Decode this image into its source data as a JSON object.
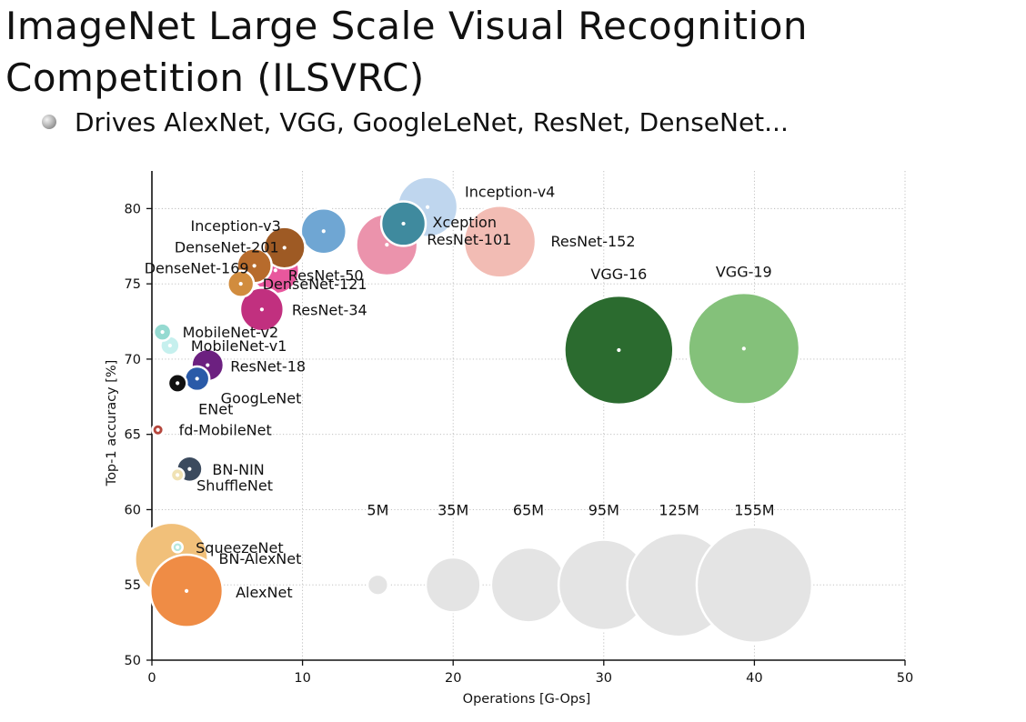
{
  "slide": {
    "title_line1": "ImageNet Large Scale Visual Recognition",
    "title_line2": "Competition (ILSVRC)",
    "bullet": "Drives AlexNet, VGG, GoogleLeNet, ResNet, DenseNet..."
  },
  "chart_data": {
    "type": "scatter",
    "xlabel": "Operations [G-Ops]",
    "ylabel": "Top-1 accuracy [%]",
    "xlim": [
      0,
      50
    ],
    "ylim": [
      50,
      82.5
    ],
    "xticks": [
      "0",
      "10",
      "20",
      "30",
      "40",
      "50"
    ],
    "yticks": [
      "50",
      "55",
      "60",
      "65",
      "70",
      "75",
      "80"
    ],
    "grid": true,
    "points": [
      {
        "name": "AlexNet",
        "x": 2.3,
        "y": 54.6,
        "params_m": 61,
        "color": "#ef8c45"
      },
      {
        "name": "BN-AlexNet",
        "x": 1.3,
        "y": 56.7,
        "params_m": 62,
        "color": "#f1c07a"
      },
      {
        "name": "SqueezeNet",
        "x": 1.7,
        "y": 57.5,
        "params_m": 1.2,
        "color": "#b6e8df"
      },
      {
        "name": "ShuffleNet",
        "x": 1.7,
        "y": 62.3,
        "params_m": 2,
        "color": "#f0e2b4"
      },
      {
        "name": "BN-NIN",
        "x": 2.5,
        "y": 62.7,
        "params_m": 7.6,
        "color": "#3b4a5e"
      },
      {
        "name": "fd-MobileNet",
        "x": 0.4,
        "y": 65.3,
        "params_m": 1.5,
        "color": "#b5473d"
      },
      {
        "name": "ENet",
        "x": 1.7,
        "y": 68.4,
        "params_m": 4,
        "color": "#111111"
      },
      {
        "name": "GoogLeNet",
        "x": 3.0,
        "y": 68.7,
        "params_m": 7,
        "color": "#2a5aa8"
      },
      {
        "name": "ResNet-18",
        "x": 3.7,
        "y": 69.6,
        "params_m": 12,
        "color": "#6c2080"
      },
      {
        "name": "MobileNet-v1",
        "x": 1.2,
        "y": 70.9,
        "params_m": 4.2,
        "color": "#c6f0ee"
      },
      {
        "name": "MobileNet-v2",
        "x": 0.7,
        "y": 71.8,
        "params_m": 3.5,
        "color": "#95dad1"
      },
      {
        "name": "ResNet-34",
        "x": 7.3,
        "y": 73.3,
        "params_m": 22,
        "color": "#c1307f"
      },
      {
        "name": "DenseNet-121",
        "x": 5.9,
        "y": 75.0,
        "params_m": 8,
        "color": "#d18c3e"
      },
      {
        "name": "DenseNet-169",
        "x": 6.8,
        "y": 76.2,
        "params_m": 14,
        "color": "#b76b2c"
      },
      {
        "name": "ResNet-50",
        "x": 8.2,
        "y": 75.9,
        "params_m": 26,
        "color": "#e8579d"
      },
      {
        "name": "DenseNet-201",
        "x": 8.8,
        "y": 77.4,
        "params_m": 20,
        "color": "#9e5a24"
      },
      {
        "name": "Inception-v3",
        "x": 11.4,
        "y": 78.5,
        "params_m": 24,
        "color": "#6fa6d3"
      },
      {
        "name": "ResNet-101",
        "x": 15.6,
        "y": 77.6,
        "params_m": 44,
        "color": "#eb93ac"
      },
      {
        "name": "Inception-v4",
        "x": 18.3,
        "y": 80.1,
        "params_m": 42,
        "color": "#bfd6ee"
      },
      {
        "name": "Xception",
        "x": 16.7,
        "y": 79.0,
        "params_m": 23,
        "color": "#3f8a9e"
      },
      {
        "name": "ResNet-152",
        "x": 23.1,
        "y": 77.8,
        "params_m": 60,
        "color": "#f2bcb4"
      },
      {
        "name": "VGG-16",
        "x": 31.0,
        "y": 70.6,
        "params_m": 138,
        "color": "#2b6b2f"
      },
      {
        "name": "VGG-19",
        "x": 39.3,
        "y": 70.7,
        "params_m": 144,
        "color": "#84c17a"
      }
    ],
    "size_legend": [
      {
        "label": "5M",
        "x": 15,
        "y": 55,
        "params_m": 5
      },
      {
        "label": "35M",
        "x": 20,
        "y": 55,
        "params_m": 35
      },
      {
        "label": "65M",
        "x": 25,
        "y": 55,
        "params_m": 65
      },
      {
        "label": "95M",
        "x": 30,
        "y": 55,
        "params_m": 95
      },
      {
        "label": "125M",
        "x": 35,
        "y": 55,
        "params_m": 125
      },
      {
        "label": "155M",
        "x": 40,
        "y": 55,
        "params_m": 155
      }
    ],
    "size_legend_color": "#e4e4e4"
  }
}
